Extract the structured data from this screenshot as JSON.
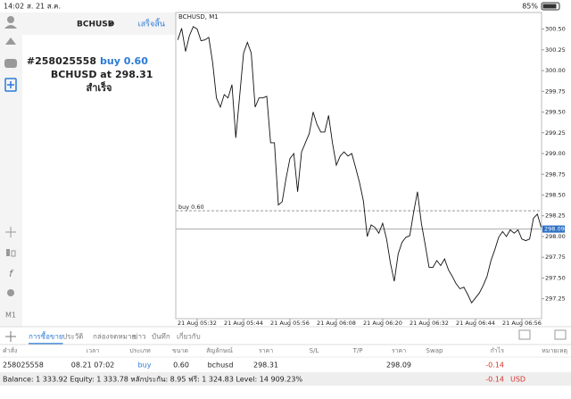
{
  "status_bar": {
    "time": "14:02",
    "date": "ส. 21 ส.ค.",
    "battery": "85%"
  },
  "order_panel": {
    "symbol": "BCHUSD",
    "done": "เสร็จสิ้น",
    "ticket": "#258025558",
    "action": "buy 0.60",
    "symbol_at": "BCHUSD at",
    "price": "298.31",
    "status": "สำเร็จ"
  },
  "toolbar": {
    "timeframe": "M1"
  },
  "chart_data": {
    "type": "line",
    "title": "BCHUSD, M1",
    "categories": [
      null,
      null,
      null,
      null,
      null,
      "21 Aug 05:32",
      null,
      null,
      null,
      null,
      null,
      null,
      null,
      null,
      null,
      null,
      null,
      "21 Aug 05:44",
      null,
      null,
      null,
      null,
      null,
      null,
      null,
      null,
      null,
      null,
      null,
      "21 Aug 05:56",
      null,
      null,
      null,
      null,
      null,
      null,
      null,
      null,
      null,
      null,
      null,
      "21 Aug 06:08",
      null,
      null,
      null,
      null,
      null,
      null,
      null,
      null,
      null,
      null,
      null,
      "21 Aug 06:20",
      null,
      null,
      null,
      null,
      null,
      null,
      null,
      null,
      null,
      null,
      null,
      "21 Aug 06:32",
      null,
      null,
      null,
      null,
      null,
      null,
      null,
      null,
      null,
      null,
      null,
      "21 Aug 06:44",
      null,
      null,
      null,
      null,
      null,
      null,
      null,
      null,
      null,
      null,
      null,
      "21 Aug 06:56",
      null,
      null,
      null,
      null,
      null
    ],
    "values": [
      300.37,
      300.51,
      300.23,
      300.42,
      300.53,
      300.5,
      300.36,
      300.37,
      300.4,
      300.1,
      299.67,
      299.56,
      299.71,
      299.67,
      299.83,
      299.19,
      299.69,
      300.21,
      300.34,
      300.21,
      299.56,
      299.67,
      299.67,
      299.69,
      299.13,
      299.13,
      298.38,
      298.42,
      298.7,
      298.94,
      299.0,
      298.54,
      299.02,
      299.13,
      299.24,
      299.5,
      299.35,
      299.26,
      299.26,
      299.46,
      299.13,
      298.86,
      298.97,
      299.02,
      298.97,
      299.0,
      298.83,
      298.65,
      298.43,
      298.0,
      298.14,
      298.11,
      298.04,
      298.16,
      297.97,
      297.68,
      297.46,
      297.79,
      297.93,
      297.99,
      298.01,
      298.29,
      298.54,
      298.16,
      297.9,
      297.63,
      297.63,
      297.71,
      297.65,
      297.73,
      297.6,
      297.52,
      297.43,
      297.37,
      297.39,
      297.3,
      297.2,
      297.26,
      297.32,
      297.41,
      297.52,
      297.71,
      297.84,
      297.99,
      298.06,
      298.0,
      298.08,
      298.04,
      298.08,
      297.97,
      297.95,
      297.97,
      298.22,
      298.27,
      298.11
    ],
    "color": "#111111",
    "ylim": [
      297.01,
      300.7
    ],
    "yticks": [
      297.25,
      {
        "value": 297.5,
        "label": "297.50"
      },
      297.75,
      {
        "value": 298,
        "label": "298.00"
      },
      298.25,
      {
        "value": 298.5,
        "label": "298.50"
      },
      298.75,
      {
        "value": 299,
        "label": "299.00"
      },
      299.25,
      {
        "value": 299.5,
        "label": "299.50"
      },
      299.75,
      {
        "value": 300,
        "label": "300.00"
      },
      300.25,
      {
        "value": 300.5,
        "label": "300.50"
      }
    ],
    "grid": false,
    "order_line": {
      "label": "buy 0.60",
      "value": 298.31
    },
    "bid": 298.09
  },
  "tabs": [
    "การซื้อขาย",
    "ประวัติ",
    "กล่องจดหมาย",
    "ข่าว",
    "บันทึก",
    "เกี่ยวกับ"
  ],
  "table": {
    "headers": [
      "คำสั่ง",
      "เวลา",
      "ประเภท",
      "ขนาด",
      "สัญลักษณ์",
      "ราคา",
      "S/L",
      "T/P",
      "ราคา",
      "Swap",
      "กำไร",
      "หมายเหตุ"
    ],
    "row": {
      "order": "258025558",
      "time": "08.21 07:02",
      "type": "buy",
      "size": "0.60",
      "symbol": "bchusd",
      "open_price": "298.31",
      "price": "298.09",
      "profit": "-0.14"
    }
  },
  "balance": {
    "text": "Balance: 1 333.92 Equity: 1 333.78 หลักประกัน: 8.95 ฟรี: 1 324.83 Level: 14 909.23%",
    "profit": "-0.14",
    "currency": "USD"
  }
}
